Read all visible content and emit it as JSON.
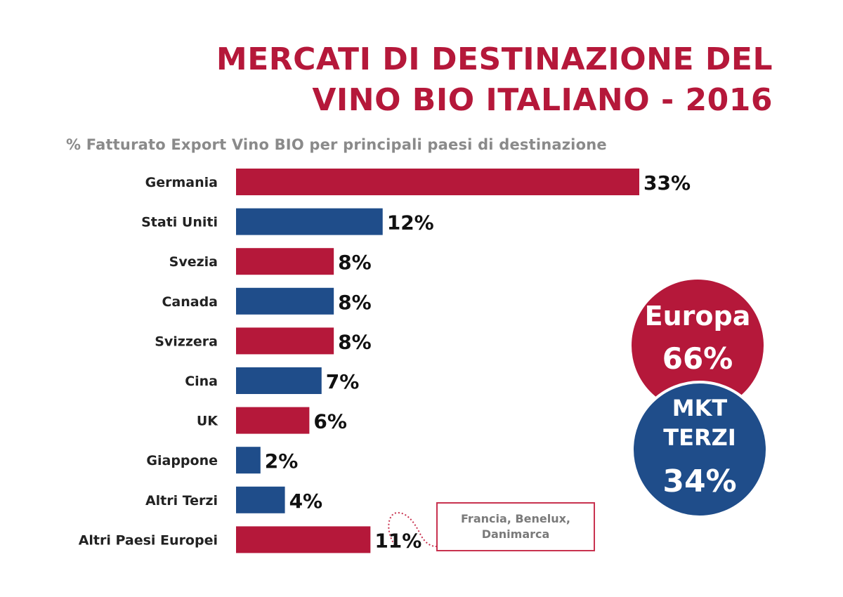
{
  "title": {
    "line1": "MERCATI DI DESTINAZIONE DEL",
    "line2": "VINO BIO ITALIANO - 2016"
  },
  "subtitle": "% Fatturato Export Vino BIO per principali paesi di destinazione",
  "chart_data": {
    "type": "bar",
    "orientation": "horizontal",
    "title": "MERCATI DI DESTINAZIONE DEL VINO BIO ITALIANO - 2016",
    "subtitle": "% Fatturato Export Vino BIO per principali paesi di destinazione",
    "categories": [
      "Germania",
      "Stati Uniti",
      "Svezia",
      "Canada",
      "Svizzera",
      "Cina",
      "UK",
      "Giappone",
      "Altri Terzi",
      "Altri Paesi Europei"
    ],
    "values": [
      33,
      12,
      8,
      8,
      8,
      7,
      6,
      2,
      4,
      11
    ],
    "value_labels": [
      "33%",
      "12%",
      "8%",
      "8%",
      "8%",
      "7%",
      "6%",
      "2%",
      "4%",
      "11%"
    ],
    "groups": [
      "Europa",
      "MKT TERZI",
      "Europa",
      "MKT TERZI",
      "Europa",
      "MKT TERZI",
      "Europa",
      "MKT TERZI",
      "MKT TERZI",
      "Europa"
    ],
    "xlim": [
      0,
      33
    ],
    "grid": false,
    "xlabel": "",
    "ylabel": ""
  },
  "colors": {
    "Europa": "#b5183a",
    "MKT TERZI": "#1f4d8a",
    "title": "#b5183a",
    "subtitle": "#8a8a8a"
  },
  "summary": {
    "europa": {
      "name": "Europa",
      "value": "66%"
    },
    "terzi": {
      "name_line1": "MKT",
      "name_line2": "TERZI",
      "value": "34%"
    }
  },
  "annotation": {
    "line1": "Francia, Benelux,",
    "line2": "Danimarca"
  }
}
